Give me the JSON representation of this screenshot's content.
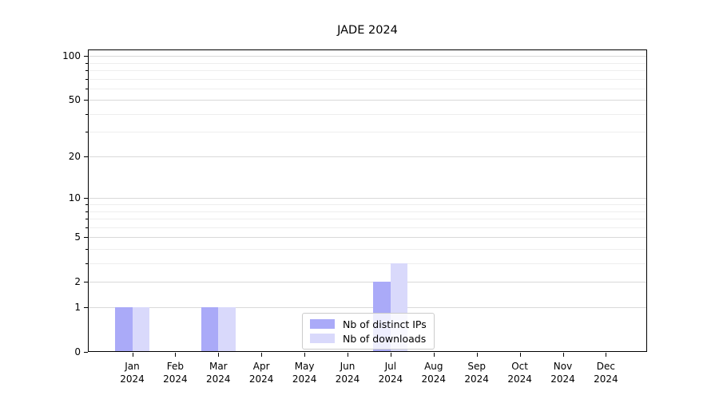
{
  "chart_data": {
    "type": "bar",
    "title": "JADE 2024",
    "categories": [
      "Jan 2024",
      "Feb 2024",
      "Mar 2024",
      "Apr 2024",
      "May 2024",
      "Jun 2024",
      "Jul 2024",
      "Aug 2024",
      "Sep 2024",
      "Oct 2024",
      "Nov 2024",
      "Dec 2024"
    ],
    "series": [
      {
        "name": "Nb of distinct IPs",
        "color": "#aaaaf8",
        "values": [
          1,
          0,
          1,
          0,
          0,
          0,
          2,
          0,
          0,
          0,
          0,
          0
        ]
      },
      {
        "name": "Nb of downloads",
        "color": "#d9d9fb",
        "values": [
          1,
          0,
          1,
          0,
          0,
          0,
          3,
          0,
          0,
          0,
          0,
          0
        ]
      }
    ],
    "xlabel": "",
    "ylabel": "",
    "yscale": "log1p",
    "ylim": [
      0,
      111
    ],
    "y_major_ticks": [
      0,
      1,
      2,
      5,
      10,
      20,
      50,
      100
    ],
    "y_minor_ticks": [
      3,
      4,
      6,
      7,
      8,
      9,
      30,
      40,
      60,
      70,
      80,
      90
    ],
    "grid": "horizontal-only",
    "legend_position": "bottom-center",
    "colors": {
      "grid_major": "#d9d9d9",
      "grid_minor": "#eeeeee",
      "spine": "#000000",
      "text": "#000000",
      "background": "#ffffff"
    }
  }
}
